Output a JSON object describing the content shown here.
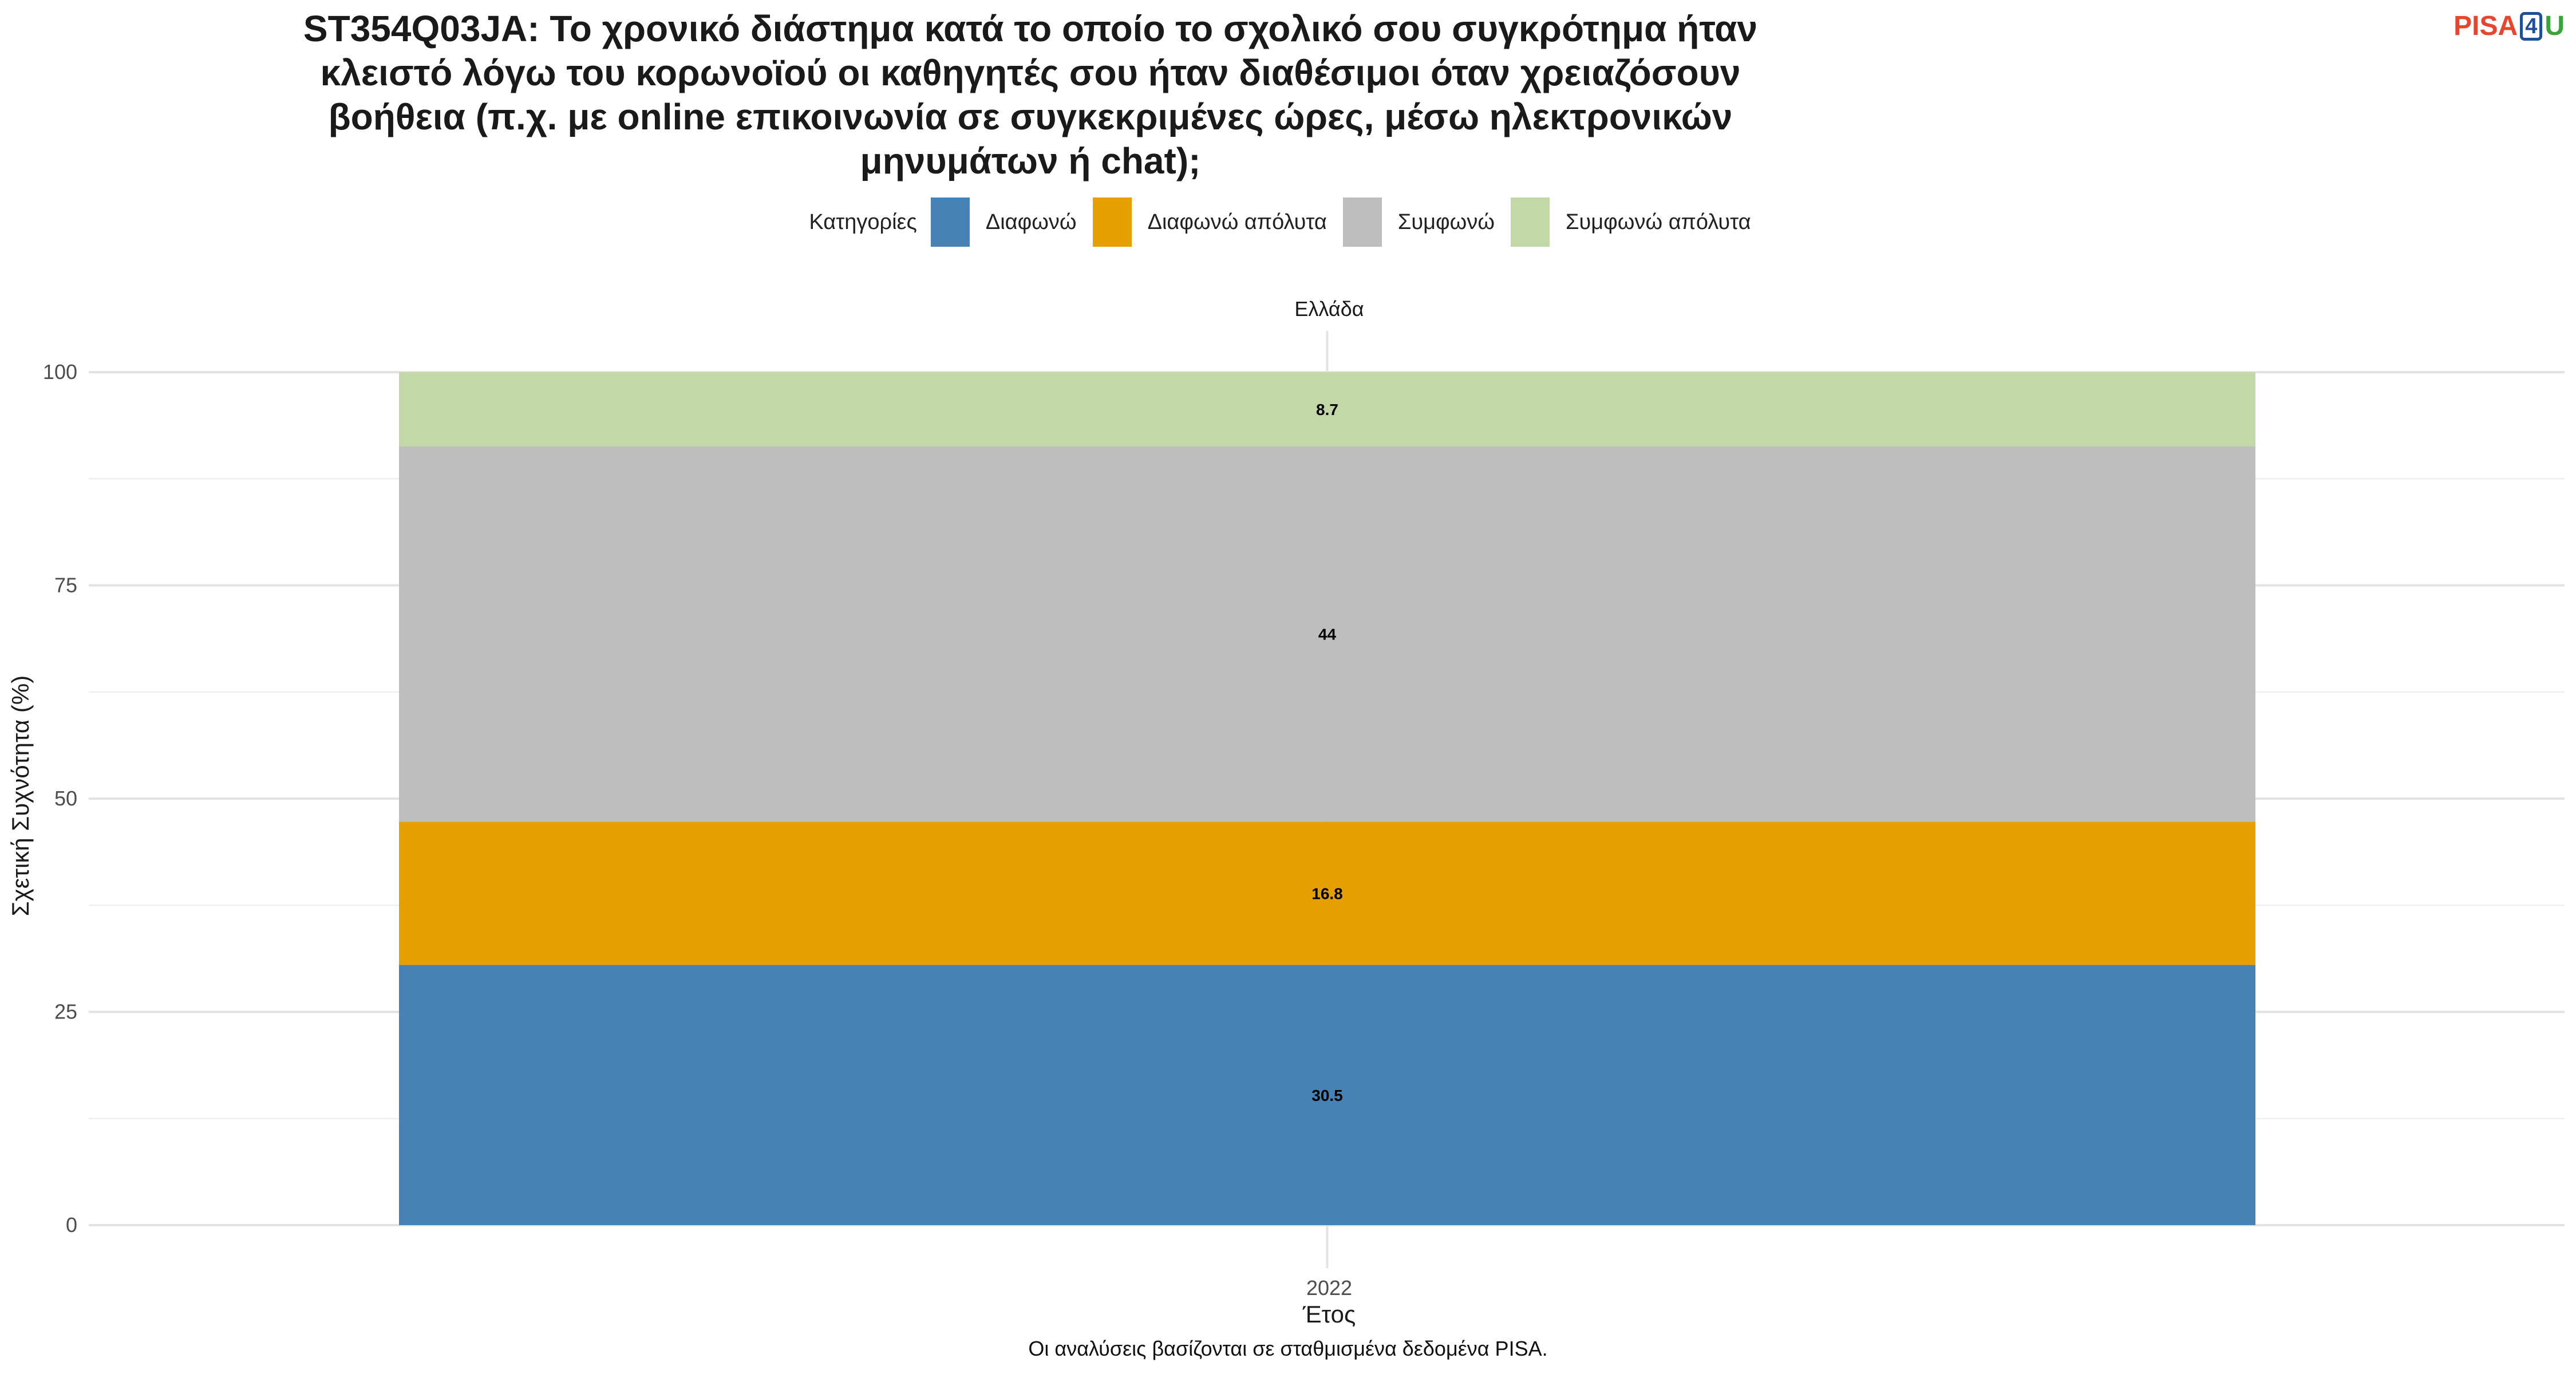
{
  "title_lines": [
    "ST354Q03JA: Το χρονικό διάστημα κατά το οποίο το σχολικό σου συγκρότημα ήταν",
    "κλειστό λόγω του κορωνοϊού οι καθηγητές σου ήταν διαθέσιμοι όταν χρειαζόσουν",
    "βοήθεια (π.χ. με online επικοινωνία σε συγκεκριμένες ώρες, μέσω ηλεκτρονικών",
    "μηνυμάτων ή chat);"
  ],
  "logo": {
    "part1": "PISA",
    "part2": "4",
    "part3": "U"
  },
  "legend": {
    "title": "Κατηγορίες",
    "items": [
      {
        "label": "Διαφωνώ",
        "color": "#4682b4"
      },
      {
        "label": "Διαφωνώ απόλυτα",
        "color": "#e69f00"
      },
      {
        "label": "Συμφωνώ",
        "color": "#bebebe"
      },
      {
        "label": "Συμφωνώ απόλυτα",
        "color": "#c3d8a7"
      }
    ]
  },
  "footnote": "Οι αναλύσεις βασίζονται σε σταθμισμένα δεδομένα PISA.",
  "chart_data": {
    "type": "bar",
    "stacked": true,
    "facet": "Ελλάδα",
    "categories": [
      "2022"
    ],
    "series": [
      {
        "name": "Διαφωνώ",
        "values": [
          30.5
        ],
        "color": "#4682b4"
      },
      {
        "name": "Διαφωνώ απόλυτα",
        "values": [
          16.8
        ],
        "color": "#e69f00"
      },
      {
        "name": "Συμφωνώ",
        "values": [
          44
        ],
        "color": "#bebebe"
      },
      {
        "name": "Συμφωνώ απόλυτα",
        "values": [
          8.7
        ],
        "color": "#c3d8a7"
      }
    ],
    "data_labels": [
      "30.5",
      "16.8",
      "44",
      "8.7"
    ],
    "xlabel": "Έτος",
    "ylabel": "Σχετική Συχνότητα (%)",
    "ylim": [
      0,
      100
    ],
    "yticks": [
      0,
      25,
      50,
      75,
      100
    ],
    "grid": true,
    "legend_position": "top"
  }
}
